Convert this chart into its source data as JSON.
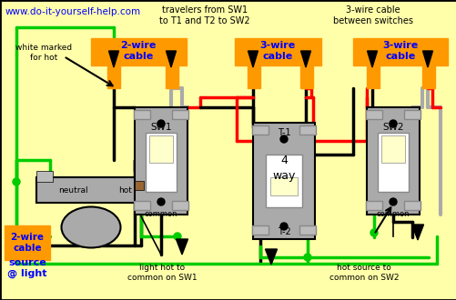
{
  "bg_color": "#ffffaa",
  "orange_color": "#ff9900",
  "blue_color": "#0000ff",
  "green_color": "#00cc00",
  "red_color": "#ff0000",
  "black_color": "#000000",
  "gray_color": "#aaaaaa",
  "gray_light": "#bbbbbb",
  "gray_dark": "#888888",
  "white_color": "#ffffff",
  "cream_color": "#ffffcc",
  "brown_color": "#996633",
  "url_text": "www.do-it-yourself-help.com",
  "label_white_marked": "white marked\nfor hot",
  "label_travelers": "travelers from SW1\nto T1 and T2 to SW2",
  "label_3wire_between": "3-wire cable\nbetween switches",
  "label_2wire_left": "2-wire\ncable",
  "label_3wire_mid": "3-wire\ncable",
  "label_3wire_right": "3-wire\ncable",
  "label_2wire_bot": "2-wire\ncable",
  "label_source": "source\n@ light",
  "label_neutral": "neutral",
  "label_hot": "hot",
  "label_sw1": "SW1",
  "label_common_sw1": "common",
  "label_t1": "T-1",
  "label_4way": "4\nway",
  "label_t2": "T-2",
  "label_sw2": "SW2",
  "label_common_sw2": "common",
  "label_light_hot": "light hot to\ncommon on SW1",
  "label_hot_source": "hot source to\ncommon on SW2"
}
